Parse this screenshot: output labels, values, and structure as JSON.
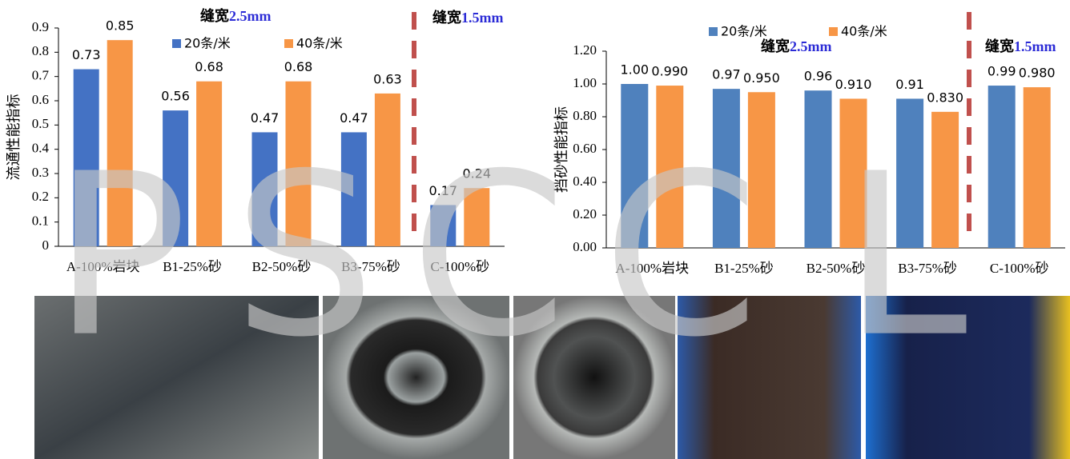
{
  "chart_data": [
    {
      "type": "bar",
      "ylabel": "流通性能指标",
      "annotations": [
        {
          "prefix": "缝宽",
          "emph": "2.5mm"
        },
        {
          "prefix": "缝宽",
          "emph": "1.5mm"
        }
      ],
      "categories": [
        "A-100%岩块",
        "B1-25%砂",
        "B2-50%砂",
        "B3-75%砂",
        "C-100%砂"
      ],
      "series": [
        {
          "name": "20条/米",
          "color": "#4472c4",
          "values": [
            0.73,
            0.56,
            0.47,
            0.47,
            0.17
          ]
        },
        {
          "name": "40条/米",
          "color": "#f79646",
          "values": [
            0.85,
            0.68,
            0.68,
            0.63,
            0.24
          ]
        }
      ],
      "ylim": [
        0,
        0.9
      ],
      "yticks": [
        0,
        0.1,
        0.2,
        0.3,
        0.4,
        0.5,
        0.6,
        0.7,
        0.8,
        0.9
      ],
      "grid": false
    },
    {
      "type": "bar",
      "ylabel": "挡砂性能指标",
      "annotations": [
        {
          "prefix": "缝宽",
          "emph": "2.5mm"
        },
        {
          "prefix": "缝宽",
          "emph": "1.5mm"
        }
      ],
      "categories": [
        "A-100%岩块",
        "B1-25%砂",
        "B2-50%砂",
        "B3-75%砂",
        "C-100%砂"
      ],
      "series": [
        {
          "name": "20条/米",
          "color": "#4f81bd",
          "values": [
            1.0,
            0.97,
            0.96,
            0.91,
            0.99
          ],
          "value_labels": [
            "1.00",
            "0.97",
            "0.96",
            "0.91",
            "0.99"
          ]
        },
        {
          "name": "40条/米",
          "color": "#f79646",
          "values": [
            0.99,
            0.95,
            0.91,
            0.83,
            0.98
          ],
          "value_labels": [
            "0.990",
            "0.950",
            "0.910",
            "0.830",
            "0.980"
          ]
        }
      ],
      "ylim": [
        0,
        1.2
      ],
      "yticks": [
        {
          "value": 0,
          "label": "0.00"
        },
        {
          "value": 0.2,
          "label": "0.20"
        },
        {
          "value": 0.4,
          "label": "0.40"
        },
        {
          "value": 0.6,
          "label": "0.60"
        },
        {
          "value": 0.8,
          "label": "0.80"
        },
        {
          "value": 1.0,
          "label": "1.00"
        },
        {
          "value": 1.2,
          "label": "1.20"
        }
      ],
      "grid": false
    }
  ],
  "watermark": [
    "P",
    "S",
    "C",
    "C",
    "L"
  ]
}
